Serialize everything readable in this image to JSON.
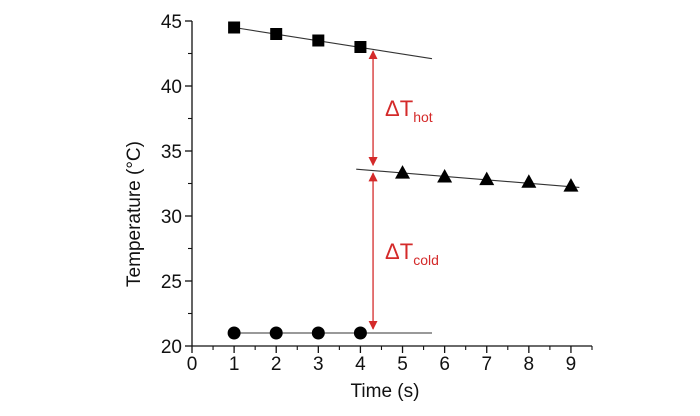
{
  "chart_data": {
    "type": "scatter",
    "xlabel": "Time (s)",
    "ylabel": "Temperature (°C)",
    "xlim": [
      0,
      9.5
    ],
    "ylim": [
      20,
      45
    ],
    "x_ticks": [
      "0",
      "1",
      "2",
      "3",
      "4",
      "5",
      "6",
      "7",
      "8",
      "9"
    ],
    "y_ticks": [
      "20",
      "25",
      "30",
      "35",
      "40",
      "45"
    ],
    "grid": false,
    "series": [
      {
        "marker": "square",
        "x": [
          1,
          2,
          3,
          4
        ],
        "y": [
          44.5,
          44.0,
          43.5,
          43.0
        ],
        "fit_line": {
          "x": [
            1,
            5.7
          ],
          "y": [
            44.5,
            42.1
          ]
        }
      },
      {
        "marker": "triangle",
        "x": [
          5,
          6,
          7,
          8,
          9
        ],
        "y": [
          33.3,
          33.0,
          32.8,
          32.6,
          32.3
        ],
        "fit_line": {
          "x": [
            3.9,
            9.2
          ],
          "y": [
            33.6,
            32.2
          ]
        }
      },
      {
        "marker": "circle",
        "x": [
          1,
          2,
          3,
          4
        ],
        "y": [
          21.0,
          21.0,
          21.0,
          21.0
        ],
        "fit_line": {
          "x": [
            1,
            5.7
          ],
          "y": [
            21.0,
            21.0
          ]
        }
      }
    ],
    "annotations": [
      {
        "symbol": "ΔT",
        "subscript": "hot",
        "x": 4.3,
        "y_from": 43.0,
        "y_to": 33.6,
        "color": "#d42a2a"
      },
      {
        "symbol": "ΔT",
        "subscript": "cold",
        "x": 4.3,
        "y_from": 33.6,
        "y_to": 21.0,
        "color": "#d42a2a"
      }
    ]
  }
}
